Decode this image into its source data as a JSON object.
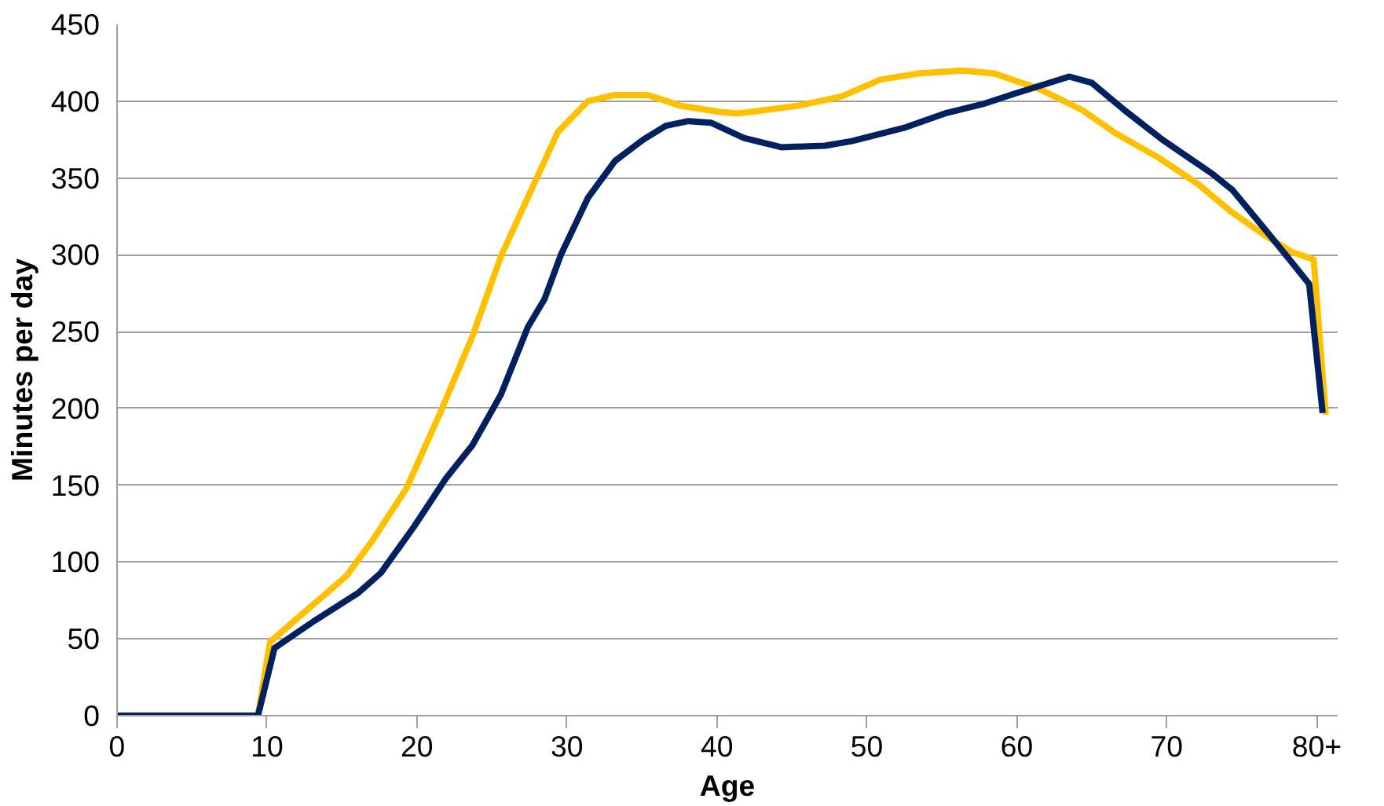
{
  "chart_data": {
    "type": "line",
    "xlabel": "Age",
    "ylabel": "Minutes per day",
    "xlim": [
      0,
      81.4
    ],
    "ylim": [
      0,
      450
    ],
    "xticks": [
      0,
      10,
      20,
      30,
      40,
      50,
      60,
      70,
      {
        "value": 80,
        "label": "80+"
      }
    ],
    "yticks": [
      0,
      50,
      100,
      150,
      200,
      250,
      300,
      350,
      400,
      450
    ],
    "grid": "y",
    "marker": "none",
    "line_style": "solid",
    "series": [
      {
        "color": "#ffc000",
        "x": [
          0,
          9.4,
          10.2,
          15.3,
          17.1,
          19.3,
          21.5,
          23.7,
          25.6,
          27.8,
          29.4,
          31.4,
          33.2,
          35.4,
          37.6,
          40.2,
          41.4,
          45.4,
          48.3,
          50.9,
          53.4,
          56.4,
          58.5,
          61.5,
          64.4,
          66.6,
          69.5,
          72.1,
          74.3,
          76.5,
          78.3,
          79.8,
          80.6
        ],
        "values": [
          0,
          0,
          48,
          91,
          115,
          148,
          196,
          247,
          299,
          346,
          380,
          400,
          404,
          404,
          397,
          393,
          392,
          397,
          403,
          414,
          418,
          420,
          418,
          408,
          394,
          379,
          363,
          346,
          328,
          313,
          302,
          297,
          196
        ]
      },
      {
        "color": "#002060",
        "x": [
          0,
          9.4,
          10.5,
          13.2,
          16.1,
          17.6,
          19.8,
          21.9,
          23.7,
          25.6,
          27.4,
          28.5,
          29.6,
          31.4,
          33.2,
          35.1,
          36.6,
          38.1,
          39.6,
          41.8,
          44.3,
          47.2,
          49.0,
          52.6,
          55.2,
          57.7,
          59.9,
          63.5,
          65.0,
          67.2,
          69.7,
          73.0,
          74.4,
          76.6,
          78.1,
          79.5,
          80.4
        ],
        "values": [
          0,
          0,
          44,
          62,
          80,
          93,
          123,
          154,
          176,
          209,
          253,
          271,
          300,
          337,
          361,
          375,
          384,
          387,
          386,
          376,
          370,
          371,
          374,
          383,
          392,
          398,
          405,
          416,
          412,
          394,
          375,
          353,
          342,
          316,
          298,
          281,
          197
        ]
      }
    ]
  }
}
